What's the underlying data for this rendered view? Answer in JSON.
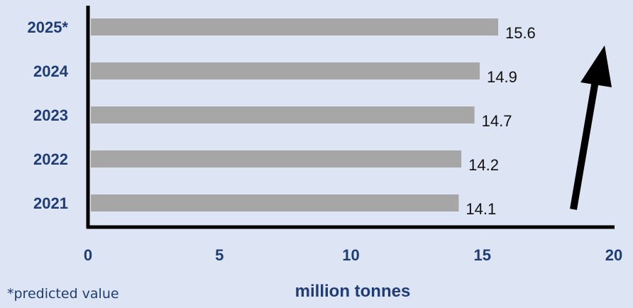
{
  "chart_data": {
    "type": "bar",
    "orientation": "horizontal",
    "categories": [
      "2021",
      "2022",
      "2023",
      "2024",
      "2025*"
    ],
    "values": [
      14.1,
      14.2,
      14.7,
      14.9,
      15.6
    ],
    "value_labels": [
      "14.1",
      "14.2",
      "14.7",
      "14.9",
      "15.6"
    ],
    "xlabel": "million tonnes",
    "ylabel": "",
    "xlim": [
      0,
      20
    ],
    "x_ticks": [
      "0",
      "5",
      "10",
      "15",
      "20"
    ],
    "grid": false,
    "legend": "none",
    "annotations": {
      "footnote": "*predicted value",
      "trend_arrow": "upward"
    },
    "colors": {
      "background": "#dde5f4",
      "bar": "#a6a6a6",
      "label_text": "#1f3c73",
      "value_text": "#111111",
      "axis": "#000000",
      "arrow": "#000000"
    }
  }
}
